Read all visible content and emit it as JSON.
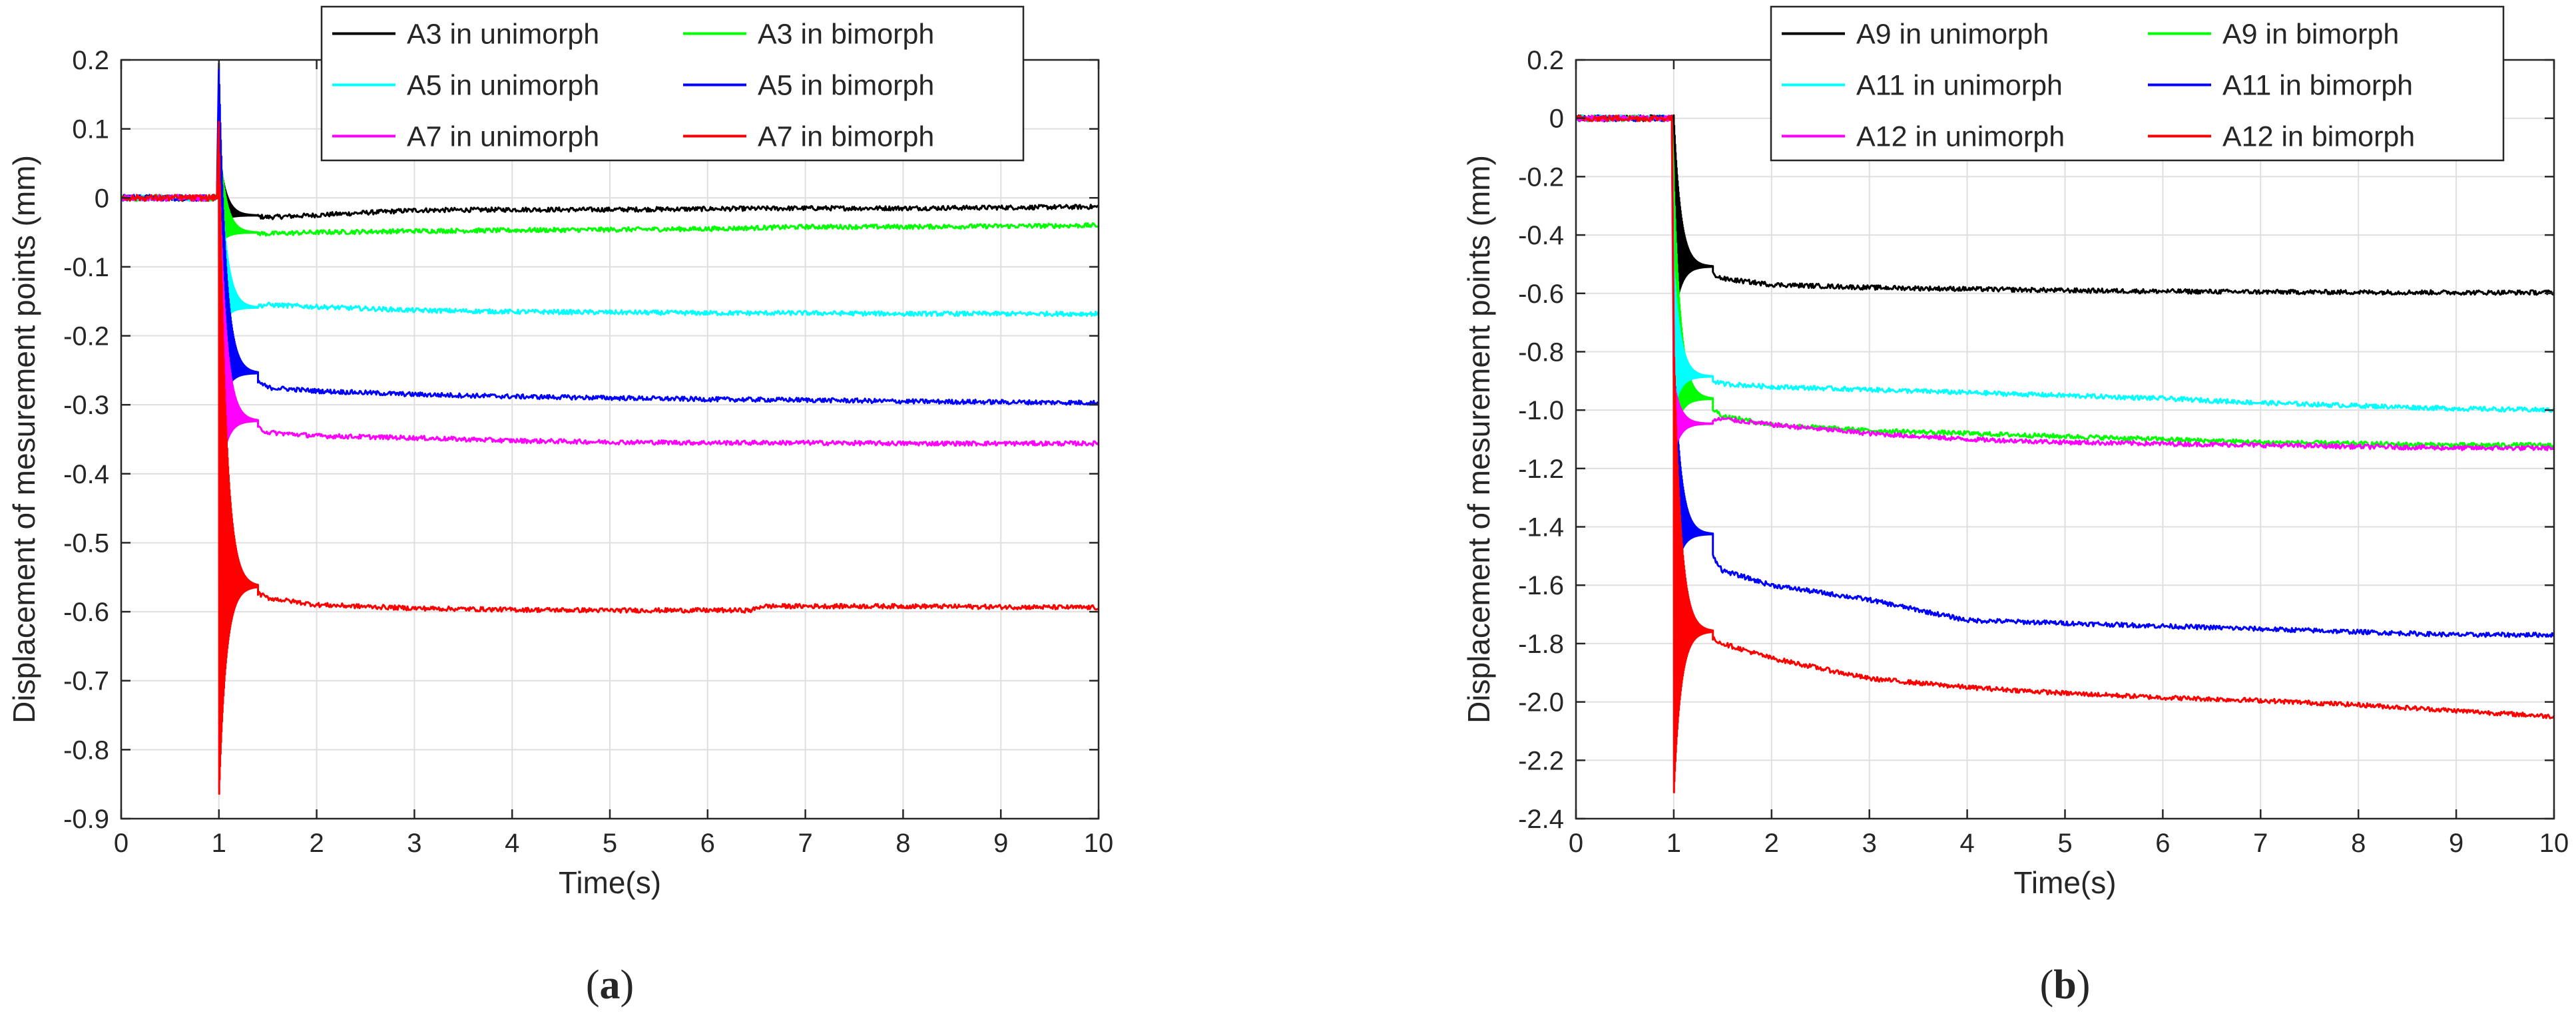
{
  "chart_data": [
    {
      "type": "line",
      "panel_label": "a",
      "xlabel": "Time(s)",
      "ylabel": "Displacement of mesurement points (mm)",
      "xlim": [
        0,
        10
      ],
      "ylim": [
        -0.9,
        0.2
      ],
      "xticks": [
        0,
        1,
        2,
        3,
        4,
        5,
        6,
        7,
        8,
        9,
        10
      ],
      "xtick_labels": [
        "0",
        "1",
        "2",
        "3",
        "4",
        "5",
        "6",
        "7",
        "8",
        "9",
        "10"
      ],
      "yticks": [
        0.2,
        0.1,
        0,
        -0.1,
        -0.2,
        -0.3,
        -0.4,
        -0.5,
        -0.6,
        -0.7,
        -0.8,
        -0.9
      ],
      "ytick_labels": [
        "0.2",
        "0.1",
        "0",
        "-0.1",
        "-0.2",
        "-0.3",
        "-0.4",
        "-0.5",
        "-0.6",
        "-0.7",
        "-0.8",
        "-0.9"
      ],
      "grid": true,
      "legend_position": "top",
      "legend_columns": 2,
      "series": [
        {
          "name": "A3 in unimorph",
          "color": "#000000",
          "peak": 0.07,
          "trough": -0.04,
          "x": [
            0,
            1,
            1.2,
            1.5,
            2,
            3,
            4,
            5,
            6,
            7,
            8,
            9,
            10
          ],
          "values": [
            0,
            0,
            -0.025,
            -0.028,
            -0.025,
            -0.018,
            -0.017,
            -0.017,
            -0.016,
            -0.015,
            -0.015,
            -0.014,
            -0.013
          ]
        },
        {
          "name": "A3 in bimorph",
          "color": "#00ff00",
          "peak": 0.09,
          "trough": -0.07,
          "x": [
            0,
            1,
            1.2,
            1.5,
            2,
            3,
            4,
            5,
            6,
            7,
            8,
            9,
            10
          ],
          "values": [
            0,
            0,
            -0.05,
            -0.052,
            -0.05,
            -0.048,
            -0.047,
            -0.046,
            -0.045,
            -0.042,
            -0.042,
            -0.041,
            -0.04
          ]
        },
        {
          "name": "A5 in unimorph",
          "color": "#00ffff",
          "peak": 0.1,
          "trough": -0.2,
          "x": [
            0,
            1,
            1.2,
            1.5,
            2,
            3,
            4,
            5,
            6,
            7,
            8,
            9,
            10
          ],
          "values": [
            0,
            0,
            -0.16,
            -0.155,
            -0.158,
            -0.163,
            -0.165,
            -0.166,
            -0.167,
            -0.167,
            -0.168,
            -0.168,
            -0.168
          ]
        },
        {
          "name": "A5 in bimorph",
          "color": "#0000ff",
          "peak": 0.195,
          "trough": -0.33,
          "x": [
            0,
            1,
            1.2,
            1.5,
            2,
            3,
            4,
            5,
            6,
            7,
            8,
            9,
            10
          ],
          "values": [
            0,
            0,
            -0.25,
            -0.275,
            -0.28,
            -0.285,
            -0.288,
            -0.29,
            -0.292,
            -0.293,
            -0.295,
            -0.296,
            -0.297
          ]
        },
        {
          "name": "A7 in unimorph",
          "color": "#ff00ff",
          "peak": 0.06,
          "trough": -0.42,
          "x": [
            0,
            1,
            1.2,
            1.5,
            2,
            3,
            4,
            5,
            6,
            7,
            8,
            9,
            10
          ],
          "values": [
            0,
            0,
            -0.32,
            -0.34,
            -0.345,
            -0.348,
            -0.352,
            -0.354,
            -0.355,
            -0.355,
            -0.356,
            -0.356,
            -0.356
          ]
        },
        {
          "name": "A7 in bimorph",
          "color": "#ff0000",
          "peak": 0.11,
          "trough": -0.875,
          "x": [
            0,
            1,
            1.2,
            1.5,
            2,
            3,
            4,
            5,
            6,
            6.45,
            6.55,
            7,
            8,
            9,
            10
          ],
          "values": [
            0,
            0,
            -0.56,
            -0.58,
            -0.59,
            -0.595,
            -0.597,
            -0.598,
            -0.598,
            -0.598,
            -0.592,
            -0.592,
            -0.592,
            -0.593,
            -0.594
          ]
        }
      ]
    },
    {
      "type": "line",
      "panel_label": "b",
      "xlabel": "Time(s)",
      "ylabel": "Displacement of mesurement points (mm)",
      "xlim": [
        0,
        10
      ],
      "ylim": [
        -2.4,
        0.2
      ],
      "xticks": [
        0,
        1,
        2,
        3,
        4,
        5,
        6,
        7,
        8,
        9,
        10
      ],
      "xtick_labels": [
        "0",
        "1",
        "2",
        "3",
        "4",
        "5",
        "6",
        "7",
        "8",
        "9",
        "10"
      ],
      "yticks": [
        0.2,
        0,
        -0.2,
        -0.4,
        -0.6,
        -0.8,
        -1.0,
        -1.2,
        -1.4,
        -1.6,
        -1.8,
        -2.0,
        -2.2,
        -2.4
      ],
      "ytick_labels": [
        "0.2",
        "0",
        "-0.2",
        "-0.4",
        "-0.6",
        "-0.8",
        "-1.0",
        "-1.2",
        "-1.4",
        "-1.6",
        "-1.8",
        "-2.0",
        "-2.2",
        "-2.4"
      ],
      "grid": true,
      "legend_position": "top",
      "legend_columns": 2,
      "series": [
        {
          "name": "A9 in unimorph",
          "color": "#000000",
          "peak": 0.01,
          "trough": -0.7,
          "x": [
            0,
            1,
            1.2,
            1.5,
            2,
            3,
            4,
            5,
            6,
            7,
            8,
            9,
            10
          ],
          "values": [
            0,
            0,
            -0.5,
            -0.55,
            -0.57,
            -0.58,
            -0.585,
            -0.59,
            -0.593,
            -0.595,
            -0.596,
            -0.597,
            -0.597
          ]
        },
        {
          "name": "A9 in bimorph",
          "color": "#00ff00",
          "peak": -0.2,
          "trough": -1.1,
          "x": [
            0,
            1,
            1.2,
            1.5,
            2,
            3,
            4,
            5,
            6,
            7,
            8,
            9,
            10
          ],
          "values": [
            0,
            0,
            -0.95,
            -1.02,
            -1.05,
            -1.07,
            -1.08,
            -1.09,
            -1.1,
            -1.11,
            -1.115,
            -1.12,
            -1.12
          ]
        },
        {
          "name": "A11 in unimorph",
          "color": "#00ffff",
          "peak": -0.5,
          "trough": -1.0,
          "x": [
            0,
            1,
            1.2,
            1.5,
            2,
            3,
            4,
            5,
            6,
            7,
            8,
            9,
            10
          ],
          "values": [
            0,
            0,
            -0.88,
            -0.91,
            -0.92,
            -0.93,
            -0.94,
            -0.95,
            -0.96,
            -0.975,
            -0.985,
            -0.995,
            -1.0
          ]
        },
        {
          "name": "A11 in bimorph",
          "color": "#0000ff",
          "peak": -0.8,
          "trough": -1.6,
          "x": [
            0,
            1,
            1.2,
            1.5,
            2,
            3,
            4,
            5,
            6,
            7,
            8,
            9,
            10
          ],
          "values": [
            0,
            0,
            -1.4,
            -1.55,
            -1.6,
            -1.65,
            -1.72,
            -1.73,
            -1.74,
            -1.75,
            -1.76,
            -1.77,
            -1.77
          ]
        },
        {
          "name": "A12 in unimorph",
          "color": "#ff00ff",
          "peak": -0.9,
          "trough": -1.15,
          "x": [
            0,
            1,
            1.2,
            1.5,
            2,
            3,
            4,
            5,
            6,
            7,
            8,
            9,
            10
          ],
          "values": [
            0,
            0,
            -1.05,
            -1.03,
            -1.05,
            -1.08,
            -1.1,
            -1.11,
            -1.115,
            -1.12,
            -1.125,
            -1.13,
            -1.13
          ]
        },
        {
          "name": "A12 in bimorph",
          "color": "#ff0000",
          "peak": -0.75,
          "trough": -2.33,
          "x": [
            0,
            1,
            1.2,
            1.5,
            2,
            3,
            4,
            5,
            6,
            7,
            8,
            9,
            10
          ],
          "values": [
            0,
            0,
            -1.75,
            -1.8,
            -1.85,
            -1.92,
            -1.95,
            -1.97,
            -1.985,
            -1.995,
            -2.01,
            -2.03,
            -2.05
          ]
        }
      ]
    }
  ]
}
